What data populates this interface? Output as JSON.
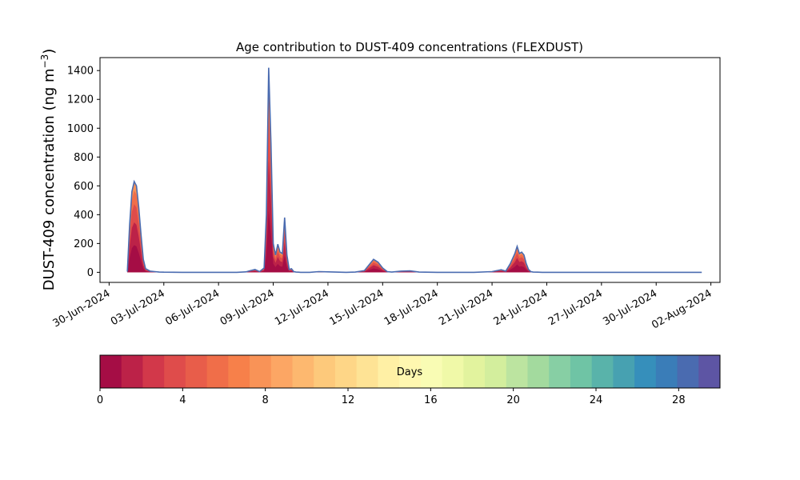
{
  "chart_data": {
    "type": "area",
    "title": "Age contribution to DUST-409 concentrations (FLEXDUST)",
    "ylabel": "DUST-409 concentration (ng m",
    "ylabel_unit_sup": "−3",
    "ylabel_close": ")",
    "ylim": [
      -70,
      1490
    ],
    "yticks": [
      0,
      200,
      400,
      600,
      800,
      1000,
      1200,
      1400
    ],
    "xlim": [
      "2024-06-29T12:00",
      "2024-08-02T12:00"
    ],
    "xticks": [
      "2024-06-30",
      "2024-07-03",
      "2024-07-06",
      "2024-07-09",
      "2024-07-12",
      "2024-07-15",
      "2024-07-18",
      "2024-07-21",
      "2024-07-24",
      "2024-07-27",
      "2024-07-30",
      "2024-08-02"
    ],
    "xtick_labels": [
      "30-Jun-2024",
      "03-Jul-2024",
      "06-Jul-2024",
      "09-Jul-2024",
      "12-Jul-2024",
      "15-Jul-2024",
      "18-Jul-2024",
      "21-Jul-2024",
      "24-Jul-2024",
      "27-Jul-2024",
      "30-Jul-2024",
      "02-Aug-2024"
    ],
    "total_concentration": {
      "x": [
        "2024-07-01T00:00",
        "2024-07-01T03:00",
        "2024-07-01T06:00",
        "2024-07-01T09:00",
        "2024-07-01T12:00",
        "2024-07-01T15:00",
        "2024-07-01T18:00",
        "2024-07-01T21:00",
        "2024-07-02T00:00",
        "2024-07-02T06:00",
        "2024-07-02T12:00",
        "2024-07-02T18:00",
        "2024-07-03T00:00",
        "2024-07-04T00:00",
        "2024-07-05T00:00",
        "2024-07-06T00:00",
        "2024-07-07T00:00",
        "2024-07-07T12:00",
        "2024-07-07T18:00",
        "2024-07-08T00:00",
        "2024-07-08T06:00",
        "2024-07-08T12:00",
        "2024-07-08T15:00",
        "2024-07-08T18:00",
        "2024-07-08T21:00",
        "2024-07-09T00:00",
        "2024-07-09T03:00",
        "2024-07-09T06:00",
        "2024-07-09T09:00",
        "2024-07-09T12:00",
        "2024-07-09T15:00",
        "2024-07-09T18:00",
        "2024-07-09T21:00",
        "2024-07-10T00:00",
        "2024-07-10T03:00",
        "2024-07-10T06:00",
        "2024-07-10T09:00",
        "2024-07-10T12:00",
        "2024-07-10T18:00",
        "2024-07-11T00:00",
        "2024-07-11T12:00",
        "2024-07-12T00:00",
        "2024-07-13T00:00",
        "2024-07-13T12:00",
        "2024-07-14T00:00",
        "2024-07-14T12:00",
        "2024-07-14T18:00",
        "2024-07-15T00:00",
        "2024-07-15T06:00",
        "2024-07-15T12:00",
        "2024-07-16T00:00",
        "2024-07-16T12:00",
        "2024-07-17T00:00",
        "2024-07-18T00:00",
        "2024-07-19T00:00",
        "2024-07-20T00:00",
        "2024-07-21T00:00",
        "2024-07-21T12:00",
        "2024-07-21T18:00",
        "2024-07-22T00:00",
        "2024-07-22T06:00",
        "2024-07-22T09:00",
        "2024-07-22T12:00",
        "2024-07-22T15:00",
        "2024-07-22T18:00",
        "2024-07-22T21:00",
        "2024-07-23T00:00",
        "2024-07-23T03:00",
        "2024-07-23T06:00",
        "2024-07-23T12:00",
        "2024-07-23T18:00",
        "2024-07-24T00:00",
        "2024-07-25T00:00",
        "2024-07-26T00:00",
        "2024-07-27T00:00",
        "2024-07-28T00:00",
        "2024-07-29T00:00",
        "2024-07-30T00:00",
        "2024-07-31T00:00",
        "2024-08-01T00:00",
        "2024-08-01T12:00"
      ],
      "y": [
        5,
        330,
        560,
        630,
        600,
        450,
        260,
        90,
        25,
        8,
        5,
        2,
        1,
        0,
        0,
        0,
        0,
        3,
        12,
        20,
        5,
        30,
        400,
        1420,
        900,
        200,
        120,
        195,
        140,
        130,
        380,
        120,
        20,
        25,
        5,
        2,
        1,
        0,
        0,
        0,
        5,
        3,
        0,
        2,
        12,
        90,
        70,
        30,
        5,
        2,
        8,
        10,
        2,
        0,
        0,
        0,
        5,
        18,
        8,
        60,
        130,
        180,
        130,
        140,
        120,
        60,
        20,
        5,
        2,
        1,
        0,
        0,
        0,
        0,
        0,
        0,
        0,
        0,
        0,
        0,
        0
      ]
    },
    "colorbar": {
      "label": "Days",
      "range": [
        0,
        30
      ],
      "ticks": [
        0,
        4,
        8,
        12,
        16,
        20,
        24,
        28
      ],
      "colors": [
        "#a50d45",
        "#bc2248",
        "#d2384a",
        "#df4c4b",
        "#e85d4a",
        "#f06e49",
        "#f7804a",
        "#f99357",
        "#fca664",
        "#fdb86f",
        "#fdc97b",
        "#fed687",
        "#fee395",
        "#fff0a5",
        "#fff7b0",
        "#f9fcb4",
        "#f0f9a8",
        "#e2f39e",
        "#d3ee9d",
        "#bce4a0",
        "#a3da9e",
        "#87cfa4",
        "#6fc4a5",
        "#59b3aa",
        "#47a1b1",
        "#368fbb",
        "#3a7db8",
        "#4a6bb0",
        "#5d55a4"
      ]
    }
  }
}
